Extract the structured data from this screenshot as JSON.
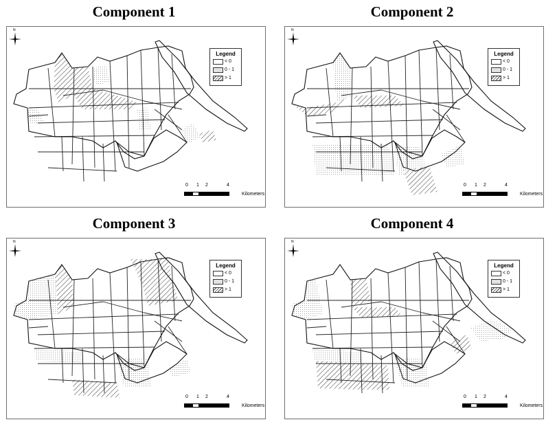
{
  "panels": [
    {
      "title": "Component 1"
    },
    {
      "title": "Component 2"
    },
    {
      "title": "Component 3"
    },
    {
      "title": "Component 4"
    }
  ],
  "legend": {
    "title": "Legend",
    "items": [
      {
        "label": "< 0",
        "pattern": "blank"
      },
      {
        "label": "0 - 1",
        "pattern": "dotted"
      },
      {
        "label": "> 1",
        "pattern": "hatched"
      }
    ]
  },
  "scale_bar": {
    "ticks": [
      "0",
      "1",
      "2",
      "4"
    ],
    "unit": "Kilometers"
  },
  "north_arrow": {
    "label": "N"
  },
  "colors": {
    "outline": "#222222",
    "dotted": "#9a9a9a",
    "hatch": "#444444",
    "frame": "#6e6e6e"
  }
}
